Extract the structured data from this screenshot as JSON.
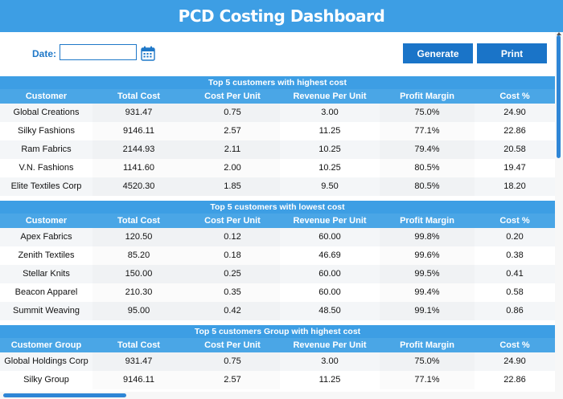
{
  "header": {
    "title": "PCD Costing Dashboard"
  },
  "controls": {
    "date_label": "Date:",
    "date_value": "",
    "generate_label": "Generate",
    "print_label": "Print"
  },
  "sections": [
    {
      "title": "Top 5 customers with highest cost",
      "columns": [
        "Customer",
        "Total Cost",
        "Cost Per Unit",
        "Revenue Per Unit",
        "Profit Margin",
        "Cost %"
      ],
      "rows": [
        [
          "Global Creations",
          "931.47",
          "0.75",
          "3.00",
          "75.0%",
          "24.90"
        ],
        [
          "Silky Fashions",
          "9146.11",
          "2.57",
          "11.25",
          "77.1%",
          "22.86"
        ],
        [
          "Ram Fabrics",
          "2144.93",
          "2.11",
          "10.25",
          "79.4%",
          "20.58"
        ],
        [
          "V.N. Fashions",
          "1141.60",
          "2.00",
          "10.25",
          "80.5%",
          "19.47"
        ],
        [
          "Elite Textiles Corp",
          "4520.30",
          "1.85",
          "9.50",
          "80.5%",
          "18.20"
        ]
      ]
    },
    {
      "title": "Top 5 customers with lowest cost",
      "columns": [
        "Customer",
        "Total Cost",
        "Cost Per Unit",
        "Revenue Per Unit",
        "Profit Margin",
        "Cost %"
      ],
      "rows": [
        [
          "Apex Fabrics",
          "120.50",
          "0.12",
          "60.00",
          "99.8%",
          "0.20"
        ],
        [
          "Zenith Textiles",
          "85.20",
          "0.18",
          "46.69",
          "99.6%",
          "0.38"
        ],
        [
          "Stellar Knits",
          "150.00",
          "0.25",
          "60.00",
          "99.5%",
          "0.41"
        ],
        [
          "Beacon Apparel",
          "210.30",
          "0.35",
          "60.00",
          "99.4%",
          "0.58"
        ],
        [
          "Summit Weaving",
          "95.00",
          "0.42",
          "48.50",
          "99.1%",
          "0.86"
        ]
      ]
    },
    {
      "title": "Top 5 customers Group with highest cost",
      "columns": [
        "Customer Group",
        "Total Cost",
        "Cost Per Unit",
        "Revenue Per Unit",
        "Profit Margin",
        "Cost %"
      ],
      "rows": [
        [
          "Global Holdings Corp",
          "931.47",
          "0.75",
          "3.00",
          "75.0%",
          "24.90"
        ],
        [
          "Silky Group",
          "9146.11",
          "2.57",
          "11.25",
          "77.1%",
          "22.86"
        ]
      ]
    }
  ]
}
